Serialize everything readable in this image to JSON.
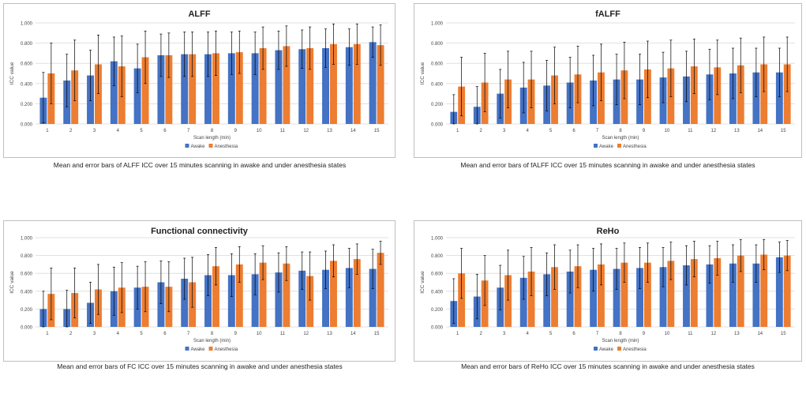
{
  "legend": {
    "awake": "Awake",
    "anesthesia": "Anesthesia"
  },
  "colors": {
    "awake": "#4472c4",
    "anesthesia": "#ed7d31",
    "grid": "#d9d9d9",
    "error": "#000000"
  },
  "chart_data": [
    {
      "type": "bar",
      "title": "ALFF",
      "xlabel": "Scan length (min)",
      "ylabel": "ICC value",
      "ylim": [
        0,
        1
      ],
      "yticks": [
        "0.000",
        "0.200",
        "0.400",
        "0.600",
        "0.800",
        "1.000"
      ],
      "categories": [
        "1",
        "2",
        "3",
        "4",
        "5",
        "6",
        "7",
        "8",
        "9",
        "10",
        "11",
        "12",
        "13",
        "14",
        "15"
      ],
      "series": [
        {
          "name": "Awake",
          "values": [
            0.26,
            0.43,
            0.48,
            0.62,
            0.55,
            0.68,
            0.69,
            0.69,
            0.7,
            0.7,
            0.73,
            0.74,
            0.75,
            0.76,
            0.81
          ],
          "errors": [
            0.25,
            0.26,
            0.25,
            0.24,
            0.24,
            0.21,
            0.22,
            0.22,
            0.21,
            0.21,
            0.19,
            0.19,
            0.19,
            0.18,
            0.15
          ]
        },
        {
          "name": "Anesthesia",
          "values": [
            0.5,
            0.53,
            0.59,
            0.57,
            0.66,
            0.68,
            0.69,
            0.7,
            0.71,
            0.75,
            0.77,
            0.75,
            0.79,
            0.79,
            0.78
          ],
          "errors": [
            0.3,
            0.3,
            0.29,
            0.3,
            0.26,
            0.22,
            0.22,
            0.22,
            0.21,
            0.21,
            0.2,
            0.21,
            0.2,
            0.2,
            0.2
          ]
        }
      ],
      "caption": "Mean and error bars of ALFF ICC over 15 minutes scanning in awake and under anesthesia states"
    },
    {
      "type": "bar",
      "title": "fALFF",
      "xlabel": "Scan length (min)",
      "ylabel": "ICC value",
      "ylim": [
        0,
        1
      ],
      "yticks": [
        "0.000",
        "0.200",
        "0.400",
        "0.600",
        "0.800",
        "1.000"
      ],
      "categories": [
        "1",
        "2",
        "3",
        "4",
        "5",
        "6",
        "7",
        "8",
        "9",
        "10",
        "11",
        "12",
        "13",
        "14",
        "15"
      ],
      "series": [
        {
          "name": "Awake",
          "values": [
            0.12,
            0.17,
            0.3,
            0.36,
            0.38,
            0.41,
            0.43,
            0.44,
            0.44,
            0.46,
            0.47,
            0.49,
            0.5,
            0.51,
            0.51
          ],
          "errors": [
            0.17,
            0.2,
            0.24,
            0.25,
            0.25,
            0.25,
            0.25,
            0.25,
            0.25,
            0.25,
            0.25,
            0.25,
            0.25,
            0.24,
            0.24
          ]
        },
        {
          "name": "Anesthesia",
          "values": [
            0.37,
            0.41,
            0.44,
            0.44,
            0.48,
            0.49,
            0.51,
            0.53,
            0.54,
            0.55,
            0.57,
            0.56,
            0.58,
            0.59,
            0.59
          ],
          "errors": [
            0.29,
            0.29,
            0.28,
            0.28,
            0.28,
            0.28,
            0.28,
            0.28,
            0.28,
            0.28,
            0.27,
            0.27,
            0.27,
            0.27,
            0.27
          ]
        }
      ],
      "caption": "Mean and error bars of fALFF ICC over 15 minutes scanning in awake and under anesthesia states"
    },
    {
      "type": "bar",
      "title": "Functional connectivity",
      "xlabel": "Scan length (min)",
      "ylabel": "ICC value",
      "ylim": [
        0,
        1
      ],
      "yticks": [
        "0.000",
        "0.200",
        "0.400",
        "0.600",
        "0.800",
        "1.000"
      ],
      "categories": [
        "1",
        "2",
        "3",
        "4",
        "5",
        "6",
        "7",
        "8",
        "9",
        "10",
        "11",
        "12",
        "13",
        "14",
        "15"
      ],
      "series": [
        {
          "name": "Awake",
          "values": [
            0.2,
            0.2,
            0.27,
            0.4,
            0.44,
            0.5,
            0.54,
            0.58,
            0.58,
            0.59,
            0.61,
            0.63,
            0.64,
            0.66,
            0.65
          ],
          "errors": [
            0.2,
            0.21,
            0.23,
            0.27,
            0.24,
            0.24,
            0.23,
            0.23,
            0.24,
            0.23,
            0.22,
            0.21,
            0.21,
            0.22,
            0.22
          ]
        },
        {
          "name": "Anesthesia",
          "values": [
            0.37,
            0.38,
            0.42,
            0.44,
            0.45,
            0.45,
            0.5,
            0.68,
            0.7,
            0.72,
            0.71,
            0.57,
            0.74,
            0.76,
            0.83
          ],
          "errors": [
            0.29,
            0.28,
            0.28,
            0.28,
            0.28,
            0.28,
            0.28,
            0.21,
            0.2,
            0.19,
            0.19,
            0.27,
            0.18,
            0.17,
            0.13
          ]
        }
      ],
      "caption": "Mean and error bars of FC ICC over 15 minutes scanning in awake and under anesthesia states"
    },
    {
      "type": "bar",
      "title": "ReHo",
      "xlabel": "Scan length (min)",
      "ylabel": "ICC value",
      "ylim": [
        0,
        1
      ],
      "yticks": [
        "0.000",
        "0.200",
        "0.400",
        "0.600",
        "0.800",
        "1.000"
      ],
      "categories": [
        "1",
        "2",
        "3",
        "4",
        "5",
        "6",
        "7",
        "8",
        "9",
        "10",
        "11",
        "12",
        "13",
        "14",
        "15"
      ],
      "series": [
        {
          "name": "Awake",
          "values": [
            0.29,
            0.34,
            0.44,
            0.55,
            0.59,
            0.62,
            0.64,
            0.65,
            0.66,
            0.67,
            0.69,
            0.7,
            0.71,
            0.71,
            0.78
          ],
          "errors": [
            0.25,
            0.25,
            0.25,
            0.24,
            0.24,
            0.24,
            0.24,
            0.23,
            0.23,
            0.22,
            0.22,
            0.21,
            0.21,
            0.21,
            0.17
          ]
        },
        {
          "name": "Anesthesia",
          "values": [
            0.6,
            0.52,
            0.58,
            0.62,
            0.67,
            0.68,
            0.7,
            0.72,
            0.72,
            0.74,
            0.76,
            0.77,
            0.8,
            0.81,
            0.8
          ],
          "errors": [
            0.28,
            0.28,
            0.28,
            0.27,
            0.25,
            0.24,
            0.23,
            0.22,
            0.22,
            0.21,
            0.2,
            0.19,
            0.18,
            0.17,
            0.17
          ]
        }
      ],
      "caption": "Mean and error bars of ReHo ICC over 15 minutes scanning in awake and under anesthesia states"
    }
  ]
}
